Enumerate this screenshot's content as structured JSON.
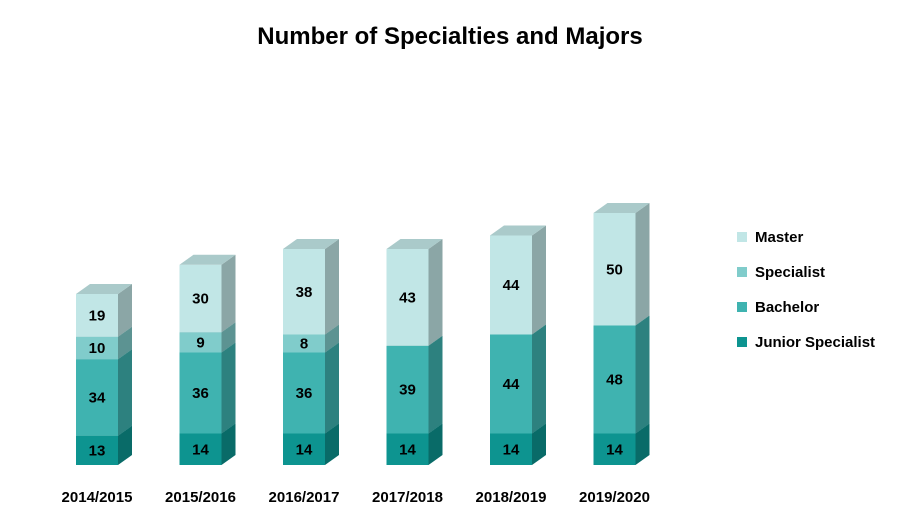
{
  "chart_data": {
    "type": "bar",
    "stacked": true,
    "style": "3d",
    "title": "Number of Specialties and Majors",
    "xlabel": "",
    "ylabel": "",
    "categories": [
      "2014/2015",
      "2015/2016",
      "2016/2017",
      "2017/2018",
      "2018/2019",
      "2019/2020"
    ],
    "series": [
      {
        "name": "Junior Specialist",
        "values": [
          13,
          14,
          14,
          14,
          14,
          14
        ],
        "color": "#0d9490"
      },
      {
        "name": "Bachelor",
        "values": [
          34,
          36,
          36,
          39,
          44,
          48
        ],
        "color": "#3fb3b0"
      },
      {
        "name": "Specialist",
        "values": [
          10,
          9,
          8,
          null,
          null,
          null
        ],
        "color": "#80cccb"
      },
      {
        "name": "Master",
        "values": [
          19,
          30,
          38,
          43,
          44,
          50
        ],
        "color": "#c1e6e6"
      }
    ],
    "data_labels": true,
    "gridlines": false,
    "legend": {
      "position": "right",
      "order": [
        "Master",
        "Specialist",
        "Bachelor",
        "Junior Specialist"
      ]
    }
  }
}
